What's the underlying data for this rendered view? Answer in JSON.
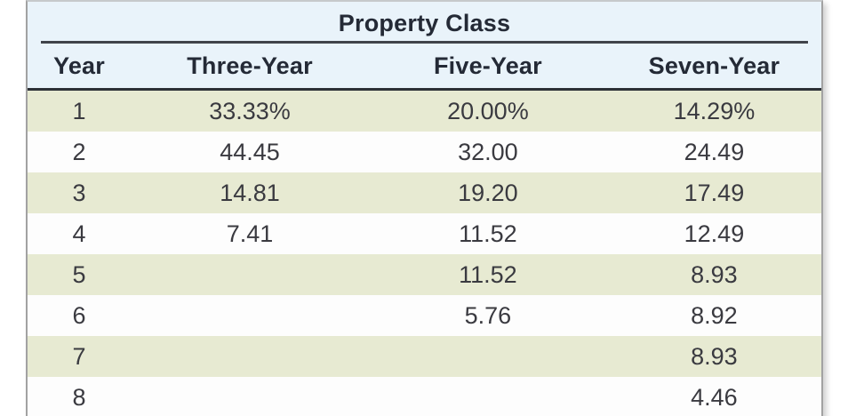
{
  "colors": {
    "header_bg": "#e9f3fa",
    "alt_row_bg": "#e7ead2",
    "rule_dark": "#40444a",
    "outer_border": "#a2a2a2",
    "text_dark": "#242a36"
  },
  "chart_data": {
    "type": "table",
    "title": "Property Class",
    "columns": [
      "Year",
      "Three-Year",
      "Five-Year",
      "Seven-Year"
    ],
    "rows": [
      [
        "1",
        "33.33%",
        "20.00%",
        "14.29%"
      ],
      [
        "2",
        "44.45",
        "32.00",
        "24.49"
      ],
      [
        "3",
        "14.81",
        "19.20",
        "17.49"
      ],
      [
        "4",
        "7.41",
        "11.52",
        "12.49"
      ],
      [
        "5",
        "",
        "11.52",
        "8.93"
      ],
      [
        "6",
        "",
        "5.76",
        "8.92"
      ],
      [
        "7",
        "",
        "",
        "8.93"
      ],
      [
        "8",
        "",
        "",
        "4.46"
      ]
    ]
  }
}
